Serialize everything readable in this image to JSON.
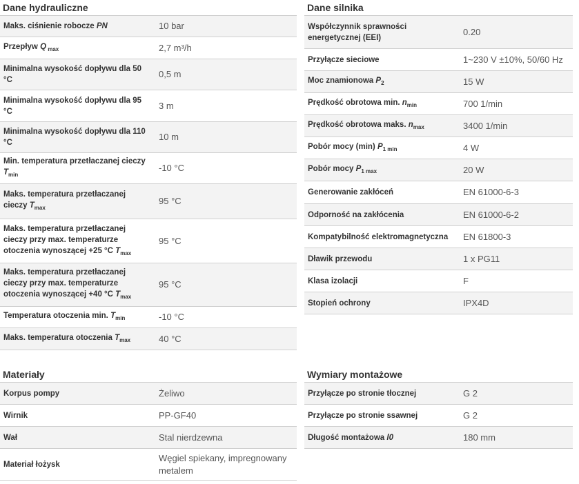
{
  "hydraulic": {
    "title": "Dane hydrauliczne",
    "rows": [
      {
        "k1": "Maks. ciśnienie robocze ",
        "ki": "PN",
        "value": "10 bar"
      },
      {
        "k1": "Przepływ ",
        "ki": "Q",
        "ks": " max",
        "value": "2,7 m³/h"
      },
      {
        "k1": "Minimalna wysokość dopływu dla 50 °C",
        "value": "0,5 m"
      },
      {
        "k1": "Minimalna wysokość dopływu dla 95 °C",
        "value": "3 m"
      },
      {
        "k1": "Minimalna wysokość dopływu dla 110 °C",
        "value": "10 m"
      },
      {
        "k1": "Min. temperatura przetłaczanej cieczy ",
        "ki": "T",
        "ks": "min",
        "value": "-10 °C"
      },
      {
        "k1": "Maks. temperatura przetłaczanej cieczy ",
        "ki": "T",
        "ks": "max",
        "value": "95 °C"
      },
      {
        "k1": "Maks. temperatura przetłaczanej cieczy przy max. temperaturze otoczenia wynoszącej +25 °C ",
        "ki": "T",
        "ks": "max",
        "value": "95 °C"
      },
      {
        "k1": "Maks. temperatura przetłaczanej cieczy przy max. temperaturze otoczenia wynoszącej +40 °C ",
        "ki": "T",
        "ks": "max",
        "value": "95 °C"
      },
      {
        "k1": "Temperatura otoczenia min. ",
        "ki": "T",
        "ks": "min",
        "value": "-10 °C"
      },
      {
        "k1": "Maks. temperatura otoczenia ",
        "ki": "T",
        "ks": "max",
        "value": "40 °C"
      }
    ]
  },
  "motor": {
    "title": "Dane silnika",
    "rows": [
      {
        "k1": "Współczynnik sprawności energetycznej (EEI)",
        "value": "0.20"
      },
      {
        "k1": "Przyłącze sieciowe",
        "value": "1~230 V ±10%, 50/60 Hz"
      },
      {
        "k1": "Moc znamionowa ",
        "ki": "P",
        "ks": "2",
        "value": "15 W"
      },
      {
        "k1": "Prędkość obrotowa min. ",
        "ki": "n",
        "ks": "min",
        "value": "700 1/min"
      },
      {
        "k1": "Prędkość obrotowa maks. ",
        "ki": "n",
        "ks": "max",
        "value": "3400 1/min"
      },
      {
        "k1": "Pobór mocy (min) ",
        "ki": "P",
        "ks": "1 min",
        "value": "4 W"
      },
      {
        "k1": "Pobór mocy ",
        "ki": "P",
        "ks": "1 max",
        "value": "20 W"
      },
      {
        "k1": "Generowanie zakłóceń",
        "value": "EN 61000-6-3"
      },
      {
        "k1": "Odporność na zakłócenia",
        "value": "EN 61000-6-2"
      },
      {
        "k1": "Kompatybilność elektromagnetyczna",
        "value": "EN 61800-3"
      },
      {
        "k1": "Dławik przewodu",
        "value": "1 x PG11"
      },
      {
        "k1": "Klasa izolacji",
        "value": "F"
      },
      {
        "k1": "Stopień ochrony",
        "value": "IPX4D"
      }
    ]
  },
  "materials": {
    "title": "Materiały",
    "rows": [
      {
        "k1": "Korpus pompy",
        "value": "Żeliwo"
      },
      {
        "k1": "Wirnik",
        "value": "PP-GF40"
      },
      {
        "k1": "Wał",
        "value": "Stal nierdzewna"
      },
      {
        "k1": "Materiał łożysk",
        "value": "Węgiel spiekany, impregnowany metalem"
      }
    ]
  },
  "mounting": {
    "title": "Wymiary montażowe",
    "rows": [
      {
        "k1": "Przyłącze po stronie tłocznej",
        "value": "G 2"
      },
      {
        "k1": "Przyłącze po stronie ssawnej",
        "value": "G 2"
      },
      {
        "k1": "Długość montażowa ",
        "ki": "l0",
        "value": "180 mm"
      }
    ]
  }
}
